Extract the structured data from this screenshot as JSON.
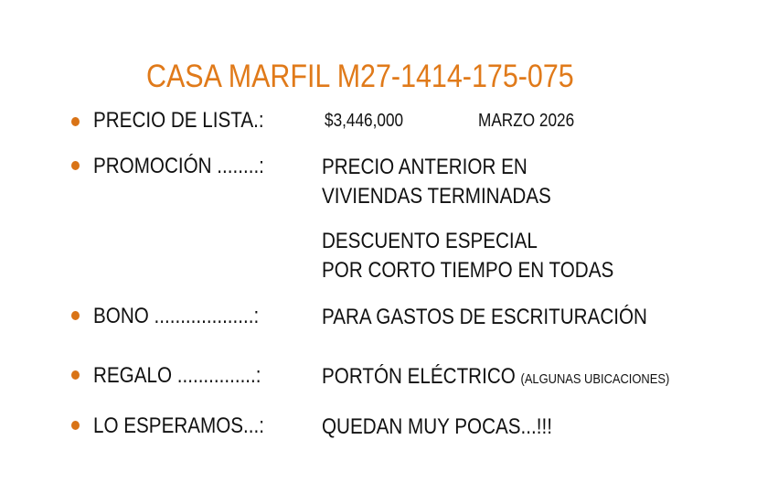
{
  "title": "CASA MARFIL M27-1414-175-075",
  "accent_color": "#e07a1a",
  "rows": [
    {
      "label": "PRECIO DE LISTA.:",
      "price": "$3,446,000",
      "date": "MARZO 2026"
    },
    {
      "label": "PROMOCIÓN ........:",
      "lines": [
        "PRECIO ANTERIOR EN",
        "VIVIENDAS TERMINADAS",
        "DESCUENTO ESPECIAL",
        "POR CORTO TIEMPO EN TODAS"
      ]
    },
    {
      "label": "BONO ...................:",
      "value": "PARA GASTOS DE ESCRITURACIÓN"
    },
    {
      "label": "REGALO ...............:",
      "value": "PORTÓN ELÉCTRICO",
      "note": "(ALGUNAS UBICACIONES)"
    },
    {
      "label": "LO ESPERAMOS...:",
      "value": "QUEDAN MUY POCAS...!!!"
    }
  ]
}
